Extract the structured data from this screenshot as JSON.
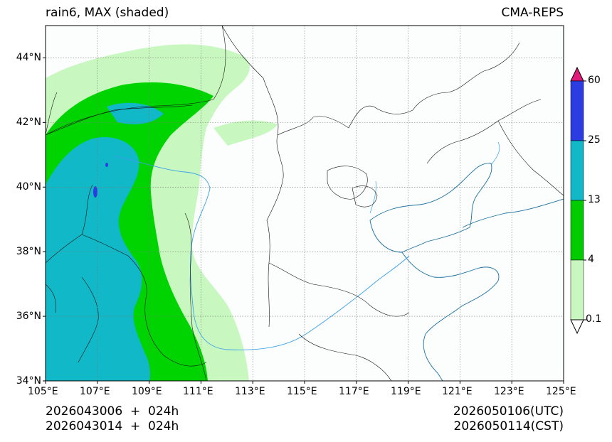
{
  "header": {
    "title_left": "rain6, MAX (shaded)",
    "title_right": "CMA-REPS"
  },
  "map": {
    "lon_labels": [
      "105°E",
      "107°E",
      "109°E",
      "111°E",
      "113°E",
      "115°E",
      "117°E",
      "119°E",
      "121°E",
      "123°E",
      "125°E"
    ],
    "lat_labels": [
      "44°N",
      "42°N",
      "40°N",
      "38°N",
      "36°N",
      "34°N"
    ],
    "lon_range": [
      105,
      125
    ],
    "lat_range": [
      34,
      45
    ]
  },
  "colorbar": {
    "labels": [
      "60",
      "25",
      "13",
      "4",
      "0.1"
    ],
    "colors": [
      "#e0197a",
      "#2b3ce0",
      "#11b8c8",
      "#00cc00",
      "#c8f8c0",
      "#ffffff"
    ]
  },
  "footer": {
    "init_utc": "2026043006  +  024h",
    "init_cst": "2026043014  +  024h",
    "valid_utc": "2026050106(UTC)",
    "valid_cst": "2026050114(CST)"
  },
  "colors": {
    "ocean_fill": "#f7fdfc",
    "river": "#3aa0e8",
    "border": "#000000"
  }
}
